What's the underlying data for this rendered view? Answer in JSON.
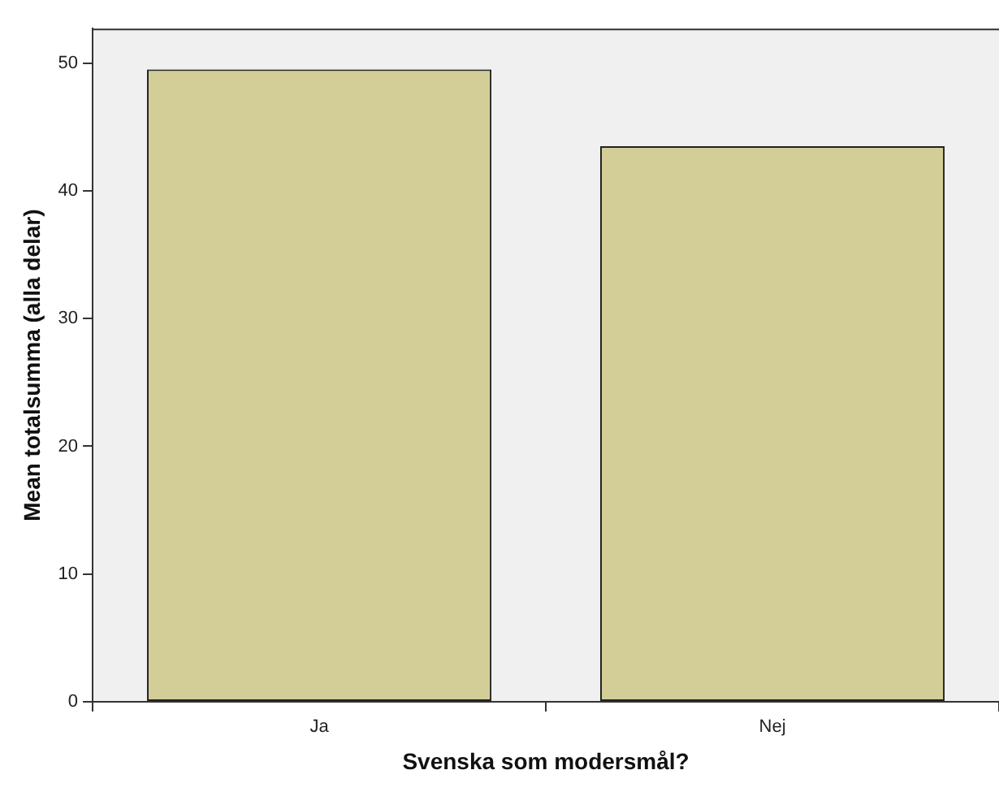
{
  "chart_data": {
    "type": "bar",
    "xlabel": "Svenska som modersmål?",
    "ylabel": "Mean totalsumma (alla delar)",
    "categories": [
      "Ja",
      "Nej"
    ],
    "values": [
      49.5,
      43.5
    ],
    "color": "#d3ce97",
    "ylim": [
      0,
      52.7
    ],
    "yticks": [
      0,
      10,
      20,
      30,
      40,
      50
    ],
    "grid": false,
    "legend": false
  }
}
